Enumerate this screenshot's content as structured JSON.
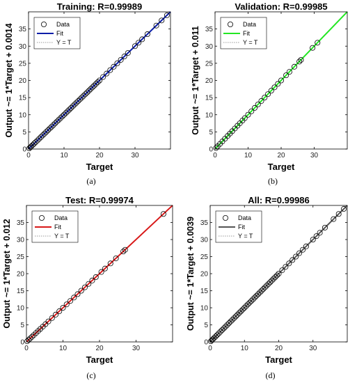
{
  "chart_data": [
    {
      "type": "scatter",
      "panel_label": "(a)",
      "title": "Training: R=0.99989",
      "xlabel": "Target",
      "ylabel": "Output ~= 1*Target + 0.0014",
      "xlim": [
        0,
        40
      ],
      "ylim": [
        0,
        40
      ],
      "xticks": [
        0,
        10,
        20,
        30
      ],
      "yticks": [
        0,
        5,
        10,
        15,
        20,
        25,
        30,
        35
      ],
      "grid": false,
      "legend_position": "top-left",
      "fit_color": "#0b1ea8",
      "legend": {
        "data": "Data",
        "fit": "Fit",
        "yt": "Y = T"
      },
      "fit": {
        "slope": 1,
        "intercept": 0.0014
      },
      "series": [
        {
          "kind": "points",
          "x": [
            0.2,
            0.5,
            0.8,
            1.2,
            1.6,
            2.0,
            2.5,
            3.0,
            3.5,
            4.0,
            4.5,
            5.0,
            5.5,
            6.0,
            6.5,
            7.0,
            7.5,
            8.0,
            8.5,
            9.0,
            9.5,
            10.0,
            10.5,
            11.0,
            11.5,
            12.0,
            12.5,
            13.0,
            13.5,
            14.0,
            14.5,
            15.0,
            15.5,
            16.0,
            16.5,
            17.0,
            17.5,
            18.0,
            18.5,
            19.0,
            19.5,
            20.0,
            21.0,
            22.0,
            23.0,
            24.0,
            25.0,
            26.0,
            27.0,
            28.0,
            30.0,
            31.0,
            32.0,
            33.5,
            36.0,
            37.5,
            39.0
          ],
          "y": [
            0.2,
            0.5,
            0.8,
            1.2,
            1.6,
            2.0,
            2.5,
            3.0,
            3.5,
            4.0,
            4.5,
            5.0,
            5.5,
            6.0,
            6.5,
            7.0,
            7.5,
            8.0,
            8.5,
            9.0,
            9.5,
            10.0,
            10.5,
            11.0,
            11.5,
            12.0,
            12.5,
            13.0,
            13.5,
            14.0,
            14.5,
            15.0,
            15.5,
            16.0,
            16.5,
            17.0,
            17.5,
            18.0,
            18.5,
            19.0,
            19.5,
            20.0,
            21.0,
            22.0,
            23.0,
            24.0,
            25.0,
            26.0,
            27.0,
            28.0,
            30.0,
            31.0,
            32.0,
            33.5,
            36.0,
            37.5,
            39.0
          ]
        }
      ]
    },
    {
      "type": "scatter",
      "panel_label": "(b)",
      "title": "Validation: R=0.99985",
      "xlabel": "Target",
      "ylabel": "Output ~= 1*Target + 0.011",
      "xlim": [
        0,
        40
      ],
      "ylim": [
        0,
        40
      ],
      "xticks": [
        0,
        10,
        20,
        30
      ],
      "yticks": [
        0,
        5,
        10,
        15,
        20,
        25,
        30,
        35
      ],
      "grid": false,
      "legend_position": "top-left",
      "fit_color": "#22e622",
      "legend": {
        "data": "Data",
        "fit": "Fit",
        "yt": "Y = T"
      },
      "fit": {
        "slope": 1,
        "intercept": 0.011
      },
      "series": [
        {
          "kind": "points",
          "x": [
            0.3,
            0.8,
            1.5,
            2.2,
            3.0,
            3.8,
            4.5,
            5.2,
            6.0,
            6.8,
            7.5,
            8.3,
            9.0,
            10.0,
            11.0,
            12.0,
            13.0,
            14.0,
            15.0,
            16.0,
            17.0,
            18.0,
            19.0,
            20.0,
            21.5,
            22.5,
            24.0,
            25.5,
            26.0,
            29.5,
            31.0
          ],
          "y": [
            0.3,
            0.8,
            1.5,
            2.2,
            3.0,
            3.8,
            4.5,
            5.2,
            6.0,
            6.8,
            7.5,
            8.3,
            9.0,
            10.0,
            11.0,
            12.0,
            13.0,
            14.0,
            15.0,
            16.0,
            17.0,
            18.0,
            19.0,
            20.0,
            21.5,
            22.5,
            24.0,
            25.5,
            26.0,
            29.5,
            31.0
          ]
        }
      ]
    },
    {
      "type": "scatter",
      "panel_label": "(c)",
      "title": "Test: R=0.99974",
      "xlabel": "Target",
      "ylabel": "Output ~= 1*Target + 0.012",
      "xlim": [
        0,
        40
      ],
      "ylim": [
        0,
        40
      ],
      "xticks": [
        0,
        10,
        20,
        30
      ],
      "yticks": [
        0,
        5,
        10,
        15,
        20,
        25,
        30,
        35
      ],
      "grid": false,
      "legend_position": "top-left",
      "fit_color": "#d81818",
      "legend": {
        "data": "Data",
        "fit": "Fit",
        "yt": "Y = T"
      },
      "fit": {
        "slope": 1,
        "intercept": 0.012
      },
      "series": [
        {
          "kind": "points",
          "x": [
            0.2,
            0.6,
            1.0,
            1.5,
            2.0,
            2.6,
            3.2,
            3.8,
            4.5,
            5.2,
            6.0,
            7.0,
            8.0,
            9.0,
            10.0,
            11.0,
            12.0,
            13.0,
            14.0,
            15.0,
            16.0,
            17.0,
            18.0,
            19.0,
            20.5,
            21.5,
            23.0,
            24.5,
            26.5,
            27.0,
            37.5
          ],
          "y": [
            0.2,
            0.6,
            1.0,
            1.5,
            2.0,
            2.6,
            3.2,
            3.8,
            4.5,
            5.2,
            6.0,
            7.0,
            8.0,
            9.0,
            10.0,
            11.0,
            12.0,
            13.0,
            14.0,
            15.0,
            16.0,
            17.0,
            18.0,
            19.0,
            20.5,
            21.5,
            23.0,
            24.5,
            26.5,
            27.0,
            37.5
          ]
        }
      ]
    },
    {
      "type": "scatter",
      "panel_label": "(d)",
      "title": "All: R=0.99986",
      "xlabel": "Target",
      "ylabel": "Output ~= 1*Target + 0.0039",
      "xlim": [
        0,
        40
      ],
      "ylim": [
        0,
        40
      ],
      "xticks": [
        0,
        10,
        20,
        30
      ],
      "yticks": [
        0,
        5,
        10,
        15,
        20,
        25,
        30,
        35
      ],
      "grid": false,
      "legend_position": "top-left",
      "fit_color": "#555555",
      "legend": {
        "data": "Data",
        "fit": "Fit",
        "yt": "Y = T"
      },
      "fit": {
        "slope": 1,
        "intercept": 0.0039
      },
      "series": [
        {
          "kind": "points",
          "x": [
            0.2,
            0.5,
            0.8,
            1.2,
            1.6,
            2.0,
            2.5,
            3.0,
            3.5,
            4.0,
            4.5,
            5.0,
            5.5,
            6.0,
            6.5,
            7.0,
            7.5,
            8.0,
            8.5,
            9.0,
            9.5,
            10.0,
            10.5,
            11.0,
            11.5,
            12.0,
            12.5,
            13.0,
            13.5,
            14.0,
            14.5,
            15.0,
            15.5,
            16.0,
            16.5,
            17.0,
            17.5,
            18.0,
            18.5,
            19.0,
            19.5,
            20.0,
            21.0,
            22.0,
            23.0,
            24.0,
            25.0,
            26.0,
            27.0,
            28.0,
            30.0,
            31.0,
            32.0,
            33.5,
            36.0,
            37.5,
            39.0
          ],
          "y": [
            0.2,
            0.5,
            0.8,
            1.2,
            1.6,
            2.0,
            2.5,
            3.0,
            3.5,
            4.0,
            4.5,
            5.0,
            5.5,
            6.0,
            6.5,
            7.0,
            7.5,
            8.0,
            8.5,
            9.0,
            9.5,
            10.0,
            10.5,
            11.0,
            11.5,
            12.0,
            12.5,
            13.0,
            13.5,
            14.0,
            14.5,
            15.0,
            15.5,
            16.0,
            16.5,
            17.0,
            17.5,
            18.0,
            18.5,
            19.0,
            19.5,
            20.0,
            21.0,
            22.0,
            23.0,
            24.0,
            25.0,
            26.0,
            27.0,
            28.0,
            30.0,
            31.0,
            32.0,
            33.5,
            36.0,
            37.5,
            39.0
          ]
        }
      ]
    }
  ]
}
